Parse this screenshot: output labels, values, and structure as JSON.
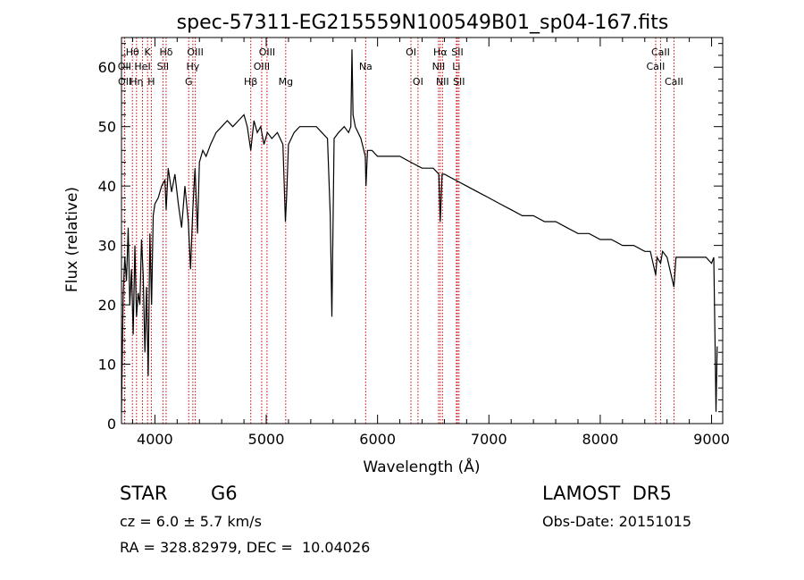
{
  "chart_data": {
    "type": "line",
    "title": "spec-57311-EG215559N100549B01_sp04-167.fits",
    "xlabel": "Wavelength (Å)",
    "ylabel": "Flux (relative)",
    "xlim": [
      3700,
      9100
    ],
    "ylim": [
      0,
      65
    ],
    "xticks": [
      4000,
      5000,
      6000,
      7000,
      8000,
      9000
    ],
    "yticks": [
      0,
      10,
      20,
      30,
      40,
      50,
      60
    ],
    "grid": false,
    "line_color": "#000000",
    "marker_color": "#cc0000",
    "series": [
      {
        "x": [
          3700,
          3715,
          3730,
          3745,
          3760,
          3775,
          3790,
          3805,
          3820,
          3835,
          3850,
          3865,
          3880,
          3895,
          3910,
          3925,
          3940,
          3955,
          3970,
          3985,
          4000,
          4030,
          4060,
          4090,
          4101,
          4120,
          4150,
          4180,
          4210,
          4240,
          4270,
          4300,
          4320,
          4340,
          4360,
          4383,
          4400,
          4430,
          4460,
          4500,
          4550,
          4600,
          4650,
          4700,
          4750,
          4800,
          4830,
          4861,
          4890,
          4920,
          4950,
          4980,
          5010,
          5050,
          5100,
          5150,
          5172,
          5183,
          5200,
          5250,
          5300,
          5350,
          5400,
          5450,
          5500,
          5550,
          5575,
          5590,
          5610,
          5650,
          5700,
          5740,
          5760,
          5770,
          5780,
          5800,
          5850,
          5890,
          5896,
          5910,
          5950,
          6000,
          6100,
          6200,
          6300,
          6400,
          6500,
          6550,
          6563,
          6580,
          6600,
          6700,
          6800,
          6900,
          7000,
          7100,
          7200,
          7300,
          7400,
          7500,
          7600,
          7700,
          7800,
          7900,
          8000,
          8100,
          8200,
          8300,
          8400,
          8450,
          8498,
          8510,
          8542,
          8560,
          8600,
          8662,
          8680,
          8750,
          8800,
          8850,
          8900,
          8950,
          9000,
          9020,
          9030,
          9040,
          9050
        ],
        "y": [
          2,
          22,
          28,
          24,
          33,
          20,
          26,
          15,
          30,
          18,
          22,
          20,
          31,
          25,
          12,
          23,
          8,
          32,
          20,
          35,
          37,
          38,
          40,
          41,
          36,
          43,
          39,
          42,
          37,
          33,
          40,
          34,
          26,
          36,
          43,
          32,
          44,
          46,
          45,
          47,
          49,
          50,
          51,
          50,
          51,
          52,
          50,
          46,
          51,
          49,
          50,
          47,
          49,
          48,
          49,
          47,
          34,
          38,
          47,
          49,
          50,
          50,
          50,
          50,
          49,
          48,
          35,
          18,
          48,
          49,
          50,
          49,
          50,
          63,
          52,
          50,
          48,
          45,
          40,
          46,
          46,
          45,
          45,
          45,
          44,
          43,
          43,
          42,
          34,
          42,
          42,
          41,
          40,
          39,
          38,
          37,
          36,
          35,
          35,
          34,
          34,
          33,
          32,
          32,
          31,
          31,
          30,
          30,
          29,
          29,
          25,
          28,
          27,
          29,
          28,
          23,
          28,
          28,
          28,
          28,
          28,
          28,
          27,
          28,
          15,
          2,
          13
        ]
      }
    ],
    "lines": [
      {
        "label": "Hθ",
        "x": 3798,
        "row": 1
      },
      {
        "label": "OII",
        "x": 3727,
        "row": 2
      },
      {
        "label": "OII",
        "x": 3729,
        "row": 3
      },
      {
        "label": "Hη",
        "x": 3835,
        "row": 3
      },
      {
        "label": "HeI",
        "x": 3889,
        "row": 2
      },
      {
        "label": "K",
        "x": 3934,
        "row": 1
      },
      {
        "label": "H",
        "x": 3968,
        "row": 3
      },
      {
        "label": "Hδ",
        "x": 4101,
        "row": 1
      },
      {
        "label": "SII",
        "x": 4072,
        "row": 2
      },
      {
        "label": "OIII",
        "x": 4363,
        "row": 1
      },
      {
        "label": "Hγ",
        "x": 4341,
        "row": 2
      },
      {
        "label": "G",
        "x": 4304,
        "row": 3
      },
      {
        "label": "Hβ",
        "x": 4861,
        "row": 3
      },
      {
        "label": "OIII",
        "x": 4959,
        "row": 2
      },
      {
        "label": "OIII",
        "x": 5007,
        "row": 1
      },
      {
        "label": "Mg",
        "x": 5175,
        "row": 3
      },
      {
        "label": "Na",
        "x": 5893,
        "row": 2
      },
      {
        "label": "OI",
        "x": 6300,
        "row": 1
      },
      {
        "label": "OI",
        "x": 6363,
        "row": 3
      },
      {
        "label": "NII",
        "x": 6548,
        "row": 2
      },
      {
        "label": "Hα",
        "x": 6563,
        "row": 1
      },
      {
        "label": "NII",
        "x": 6583,
        "row": 3
      },
      {
        "label": "Li",
        "x": 6708,
        "row": 2
      },
      {
        "label": "SII",
        "x": 6717,
        "row": 1
      },
      {
        "label": "SII",
        "x": 6731,
        "row": 3
      },
      {
        "label": "CaII",
        "x": 8498,
        "row": 2
      },
      {
        "label": "CaII",
        "x": 8542,
        "row": 1
      },
      {
        "label": "CaII",
        "x": 8662,
        "row": 3
      }
    ]
  },
  "info": {
    "object_class": "STAR",
    "subclass": "G6",
    "cz": "cz = 6.0 ± 5.7 km/s",
    "coords": "RA = 328.82979, DEC =  10.04026",
    "survey": "LAMOST  DR5",
    "obs_date": "Obs-Date: 20151015"
  }
}
